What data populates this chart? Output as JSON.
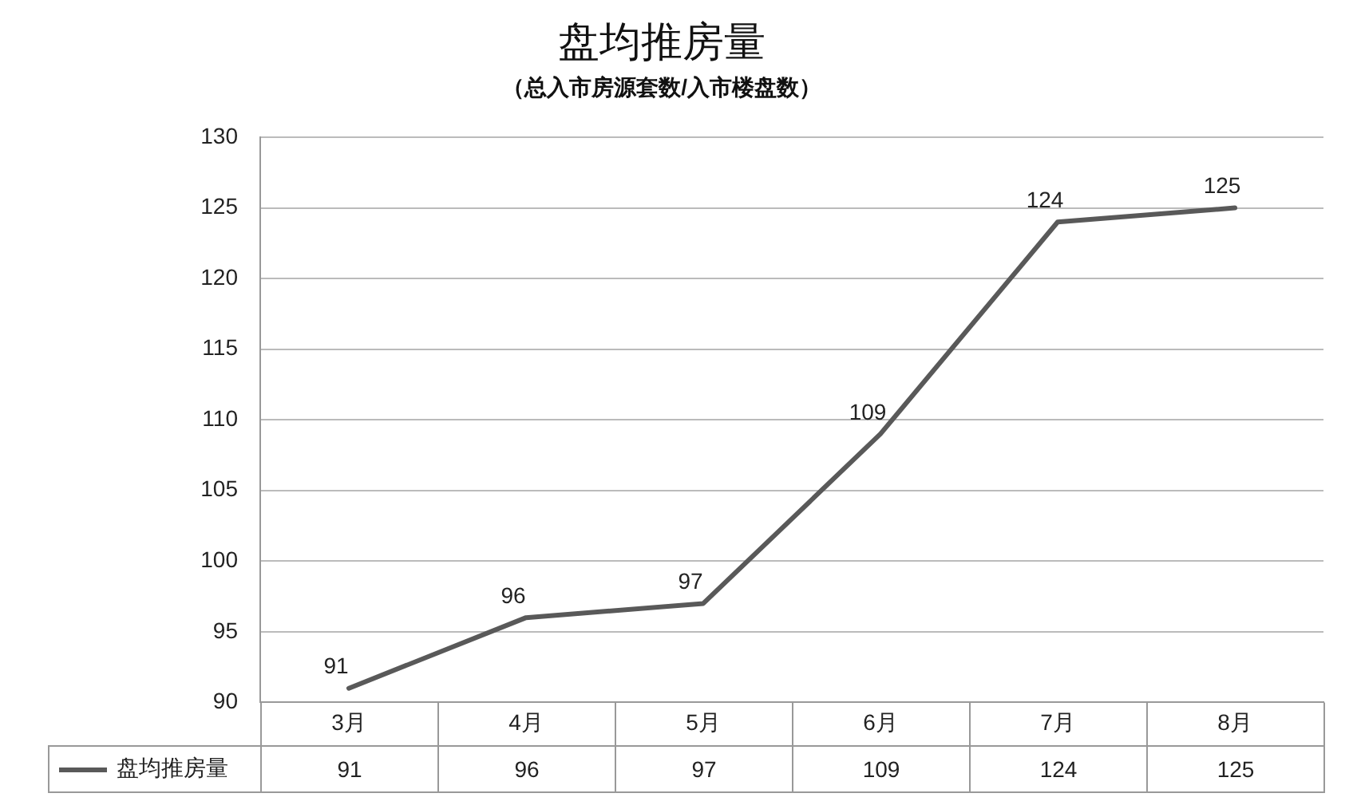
{
  "chart_data": {
    "type": "line",
    "title": "盘均推房量",
    "subtitle": "（总入市房源套数/入市楼盘数）",
    "categories": [
      "3月",
      "4月",
      "5月",
      "6月",
      "7月",
      "8月"
    ],
    "series": [
      {
        "name": "盘均推房量",
        "color": "#595959",
        "values": [
          91,
          96,
          97,
          109,
          124,
          125
        ]
      }
    ],
    "annotations": [
      "91",
      "96",
      "97",
      "109",
      "124",
      "125"
    ],
    "ylim": [
      90,
      130
    ],
    "yticks": [
      90,
      95,
      100,
      105,
      110,
      115,
      120,
      125,
      130
    ],
    "grid": "y",
    "legend": "bottom",
    "marker": "none",
    "line_style": "solid",
    "data_labels": true
  }
}
